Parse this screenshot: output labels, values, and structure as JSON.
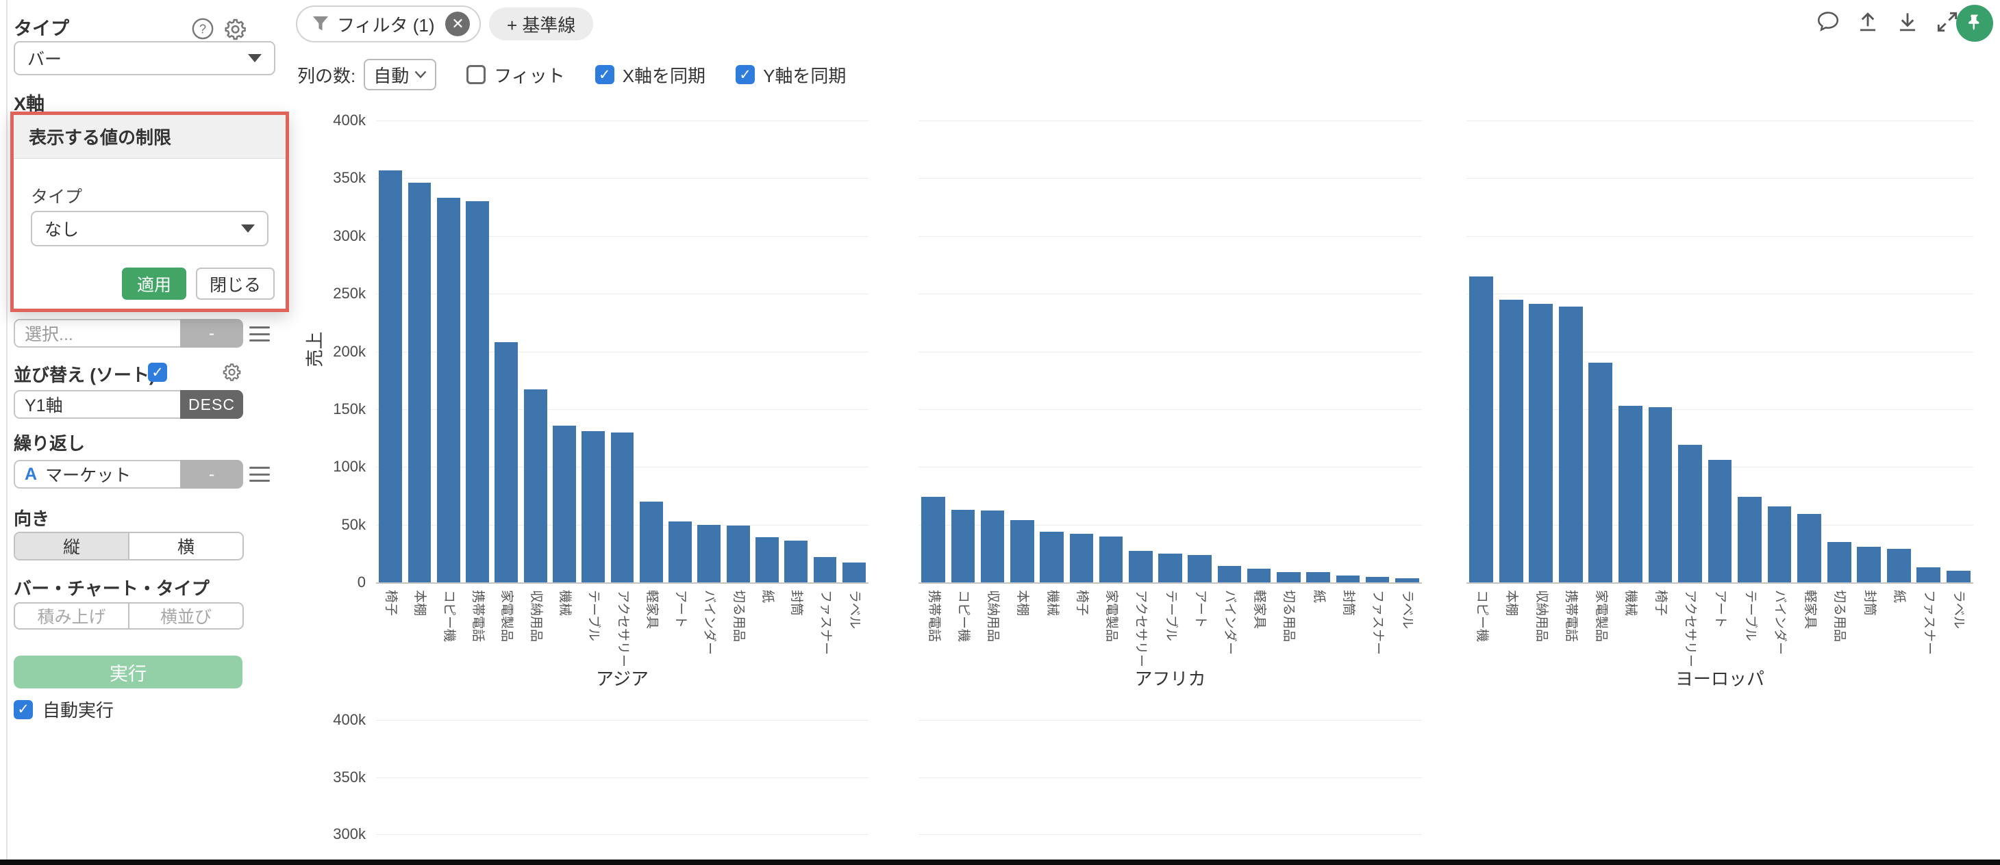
{
  "sidebar": {
    "type_label": "タイプ",
    "type_value": "バー",
    "xaxis_label": "X軸",
    "select_placeholder": "選択...",
    "aggregate_value": "-",
    "sort_label": "並び替え (ソート)",
    "sort_field": "Y1軸",
    "sort_order": "DESC",
    "repeat_label": "繰り返し",
    "repeat_field_type": "A",
    "repeat_field": "マーケット",
    "repeat_aggregate": "-",
    "orientation_label": "向き",
    "orientation_options": [
      "縦",
      "横"
    ],
    "orientation_selected": "縦",
    "bar_chart_type_label": "バー・チャート・タイプ",
    "bar_chart_type_options": [
      "積み上げ",
      "横並び"
    ],
    "run_label": "実行",
    "autorun_label": "自動実行"
  },
  "popup": {
    "title": "表示する値の制限",
    "type_label": "タイプ",
    "type_value": "なし",
    "apply_label": "適用",
    "close_label": "閉じる"
  },
  "toolbar": {
    "filter_label": "フィルタ (1)",
    "baseline_label": "+ 基準線",
    "columns_label": "列の数:",
    "columns_value": "自動",
    "fit_label": "フィット",
    "fit_checked": false,
    "sync_x_label": "X軸を同期",
    "sync_x_checked": true,
    "sync_y_label": "Y軸を同期",
    "sync_y_checked": true,
    "icons": [
      "comment",
      "upload",
      "download",
      "expand",
      "pin"
    ]
  },
  "colors": {
    "bar": "#3e75ad",
    "accent_blue": "#2e7cdb",
    "apply_green": "#42a566",
    "run_green_disabled": "#93cfa7",
    "popup_highlight_red": "#e0635a",
    "pin_badge_green": "#3aa06b",
    "desc_button_gray": "#666666"
  },
  "chart_data": {
    "type": "bar",
    "ylabel": "売上",
    "ylim": [
      0,
      400000
    ],
    "yticks": [
      "400k",
      "350k",
      "300k",
      "250k",
      "200k",
      "150k",
      "100k",
      "50k",
      "0"
    ],
    "grid": true,
    "legend": "none",
    "panels": [
      {
        "title": "アジア",
        "categories": [
          "椅子",
          "本棚",
          "コピー機",
          "携帯電話",
          "家電製品",
          "収納用品",
          "機械",
          "テーブル",
          "アクセサリー",
          "軽家具",
          "アート",
          "バインダー",
          "切る用品",
          "紙",
          "封筒",
          "ファスナー",
          "ラベル"
        ],
        "values": [
          357000,
          346000,
          333000,
          330000,
          208000,
          167000,
          136000,
          131000,
          130000,
          70000,
          53000,
          50000,
          49000,
          39000,
          36000,
          22000,
          17000
        ]
      },
      {
        "title": "アフリカ",
        "categories": [
          "携帯電話",
          "コピー機",
          "収納用品",
          "本棚",
          "機械",
          "椅子",
          "家電製品",
          "アクセサリー",
          "テーブル",
          "アート",
          "バインダー",
          "軽家具",
          "切る用品",
          "紙",
          "封筒",
          "ファスナー",
          "ラベル"
        ],
        "values": [
          74000,
          63000,
          62000,
          54000,
          44000,
          42000,
          40000,
          27000,
          25000,
          24000,
          14000,
          12000,
          9000,
          9000,
          6000,
          4500,
          3500
        ]
      },
      {
        "title": "ヨーロッパ",
        "categories": [
          "コピー機",
          "本棚",
          "収納用品",
          "携帯電話",
          "家電製品",
          "機械",
          "椅子",
          "アクセサリー",
          "アート",
          "テーブル",
          "バインダー",
          "軽家具",
          "切る用品",
          "封筒",
          "紙",
          "ファスナー",
          "ラベル"
        ],
        "values": [
          265000,
          245000,
          241000,
          239000,
          190000,
          153000,
          152000,
          119000,
          106000,
          74000,
          66000,
          59000,
          35000,
          31000,
          29000,
          13000,
          10000
        ]
      }
    ],
    "partial_second_row": {
      "visible_yticks": [
        "400k",
        "350k",
        "300k"
      ],
      "panel_count": 2
    }
  }
}
